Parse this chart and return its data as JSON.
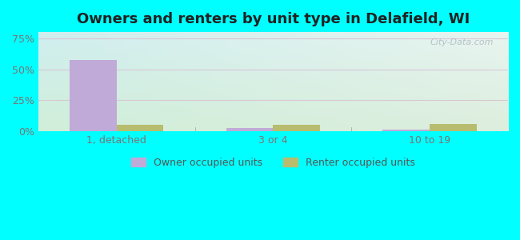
{
  "title": "Owners and renters by unit type in Delafield, WI",
  "categories": [
    "1, detached",
    "3 or 4",
    "10 to 19"
  ],
  "owner_values": [
    57.5,
    2.5,
    1.2
  ],
  "renter_values": [
    5.0,
    5.5,
    6.2
  ],
  "owner_color": "#c0aad8",
  "renter_color": "#b8bc6e",
  "yticks": [
    0,
    25,
    50,
    75
  ],
  "ytick_labels": [
    "0%",
    "25%",
    "50%",
    "75%"
  ],
  "ylim": [
    0,
    80
  ],
  "bar_width": 0.3,
  "outer_bg": "#00ffff",
  "watermark": "City-Data.com",
  "legend_owner": "Owner occupied units",
  "legend_renter": "Renter occupied units",
  "title_fontsize": 13,
  "tick_fontsize": 9,
  "legend_fontsize": 9,
  "bg_top_left": "#d0eef0",
  "bg_bottom_right": "#ddeedd",
  "grid_color": "#e0e8d8"
}
